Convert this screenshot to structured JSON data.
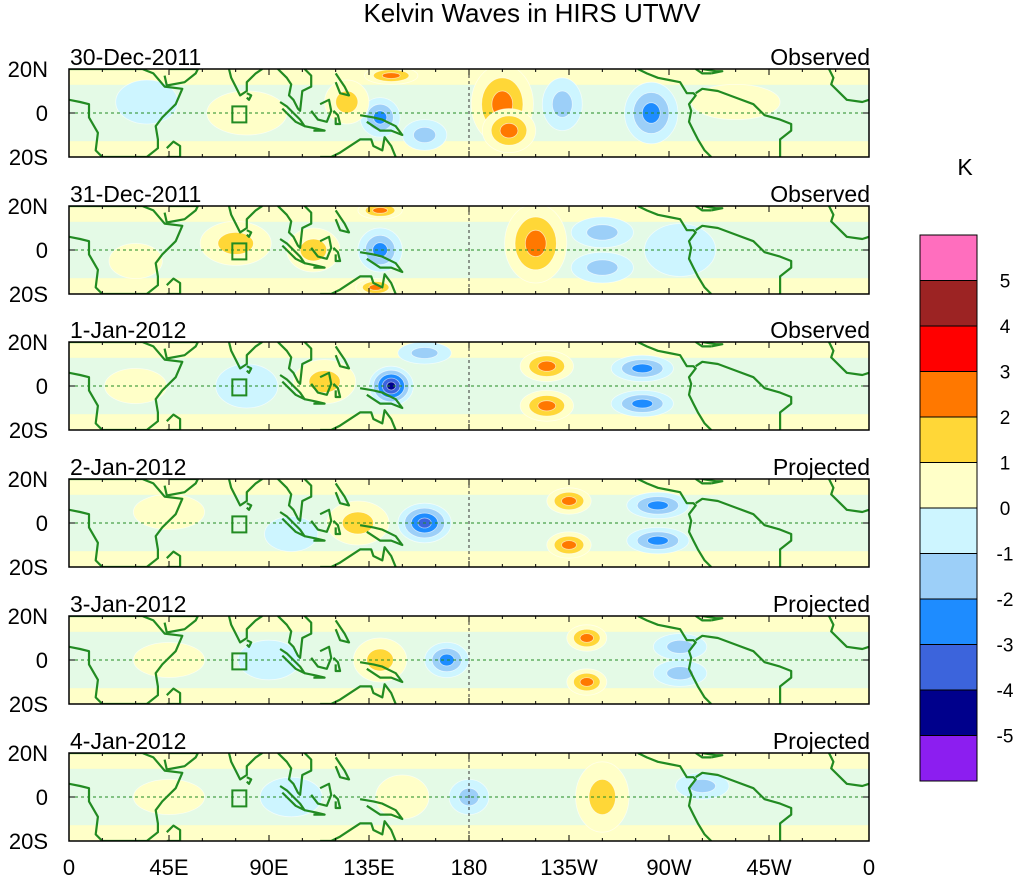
{
  "chart_data": {
    "type": "heatmap",
    "title": "Kelvin Waves in HIRS UTWV",
    "units": "K",
    "xlabel": "",
    "ylabel": "",
    "x_ticks": [
      "0",
      "45E",
      "90E",
      "135E",
      "180",
      "135W",
      "90W",
      "45W",
      "0"
    ],
    "x_tick_lons": [
      0,
      45,
      90,
      135,
      180,
      225,
      270,
      315,
      360
    ],
    "y_ticks": [
      "20N",
      "0",
      "20S"
    ],
    "y_tick_lats": [
      20,
      0,
      -20
    ],
    "lat_range": [
      -20,
      20
    ],
    "lon_range": [
      0,
      360
    ],
    "panels": [
      {
        "date": "30-Dec-2011",
        "kind": "Observed",
        "features": [
          {
            "lon": 195,
            "lat": 4,
            "value": 2.6,
            "rx": 14,
            "ry": 18
          },
          {
            "lon": 198,
            "lat": -8,
            "value": 2.2,
            "rx": 12,
            "ry": 10
          },
          {
            "lon": 140,
            "lat": -2,
            "value": -2.6,
            "rx": 9,
            "ry": 9
          },
          {
            "lon": 262,
            "lat": 0,
            "value": -2.4,
            "rx": 12,
            "ry": 14
          },
          {
            "lon": 222,
            "lat": 4,
            "value": -1.8,
            "rx": 9,
            "ry": 12
          },
          {
            "lon": 125,
            "lat": 5,
            "value": 1.8,
            "rx": 10,
            "ry": 10
          },
          {
            "lon": 80,
            "lat": 0,
            "value": 0.9,
            "rx": 18,
            "ry": 10
          },
          {
            "lon": 145,
            "lat": 17,
            "value": 2.2,
            "rx": 12,
            "ry": 4
          },
          {
            "lon": 160,
            "lat": -10,
            "value": -1.6,
            "rx": 10,
            "ry": 7
          },
          {
            "lon": 35,
            "lat": 5,
            "value": -0.8,
            "rx": 14,
            "ry": 10
          },
          {
            "lon": 300,
            "lat": 5,
            "value": 0.7,
            "rx": 20,
            "ry": 8
          }
        ]
      },
      {
        "date": "31-Dec-2011",
        "kind": "Observed",
        "features": [
          {
            "lon": 210,
            "lat": 3,
            "value": 2.6,
            "rx": 14,
            "ry": 18
          },
          {
            "lon": 140,
            "lat": 0,
            "value": -2.6,
            "rx": 10,
            "ry": 10
          },
          {
            "lon": 240,
            "lat": 8,
            "value": -1.6,
            "rx": 14,
            "ry": 7
          },
          {
            "lon": 240,
            "lat": -8,
            "value": -1.6,
            "rx": 14,
            "ry": 7
          },
          {
            "lon": 140,
            "lat": 18,
            "value": 2.8,
            "rx": 10,
            "ry": 4
          },
          {
            "lon": 138,
            "lat": -17,
            "value": 2.6,
            "rx": 9,
            "ry": 4
          },
          {
            "lon": 110,
            "lat": 0,
            "value": 1.0,
            "rx": 12,
            "ry": 10
          },
          {
            "lon": 75,
            "lat": 3,
            "value": 1.2,
            "rx": 16,
            "ry": 10
          },
          {
            "lon": 275,
            "lat": 0,
            "value": -0.9,
            "rx": 16,
            "ry": 12
          },
          {
            "lon": 30,
            "lat": -5,
            "value": 0.8,
            "rx": 12,
            "ry": 8
          }
        ]
      },
      {
        "date": "1-Jan-2012",
        "kind": "Observed",
        "features": [
          {
            "lon": 145,
            "lat": 0,
            "value": -4.3,
            "rx": 10,
            "ry": 9
          },
          {
            "lon": 215,
            "lat": 9,
            "value": 2.8,
            "rx": 12,
            "ry": 7
          },
          {
            "lon": 215,
            "lat": -9,
            "value": 2.8,
            "rx": 12,
            "ry": 7
          },
          {
            "lon": 258,
            "lat": 8,
            "value": -2.2,
            "rx": 14,
            "ry": 6
          },
          {
            "lon": 258,
            "lat": -8,
            "value": -2.2,
            "rx": 14,
            "ry": 6
          },
          {
            "lon": 115,
            "lat": 2,
            "value": 1.2,
            "rx": 14,
            "ry": 10
          },
          {
            "lon": 160,
            "lat": 15,
            "value": -1.2,
            "rx": 12,
            "ry": 5
          },
          {
            "lon": 80,
            "lat": 0,
            "value": -0.8,
            "rx": 14,
            "ry": 10
          },
          {
            "lon": 30,
            "lat": 0,
            "value": 0.8,
            "rx": 14,
            "ry": 8
          }
        ]
      },
      {
        "date": "2-Jan-2012",
        "kind": "Projected",
        "features": [
          {
            "lon": 160,
            "lat": 0,
            "value": -3.2,
            "rx": 12,
            "ry": 9
          },
          {
            "lon": 225,
            "lat": 10,
            "value": 2.7,
            "rx": 10,
            "ry": 6
          },
          {
            "lon": 225,
            "lat": -10,
            "value": 2.7,
            "rx": 10,
            "ry": 6
          },
          {
            "lon": 265,
            "lat": 8,
            "value": -2.0,
            "rx": 14,
            "ry": 6
          },
          {
            "lon": 265,
            "lat": -8,
            "value": -2.0,
            "rx": 14,
            "ry": 6
          },
          {
            "lon": 130,
            "lat": 0,
            "value": 1.3,
            "rx": 14,
            "ry": 10
          },
          {
            "lon": 100,
            "lat": -5,
            "value": -0.8,
            "rx": 12,
            "ry": 8
          },
          {
            "lon": 45,
            "lat": 5,
            "value": 0.6,
            "rx": 16,
            "ry": 8
          }
        ]
      },
      {
        "date": "3-Jan-2012",
        "kind": "Projected",
        "features": [
          {
            "lon": 170,
            "lat": 0,
            "value": -2.4,
            "rx": 10,
            "ry": 8
          },
          {
            "lon": 233,
            "lat": 10,
            "value": 2.3,
            "rx": 9,
            "ry": 6
          },
          {
            "lon": 233,
            "lat": -10,
            "value": 2.3,
            "rx": 9,
            "ry": 6
          },
          {
            "lon": 275,
            "lat": 6,
            "value": -1.7,
            "rx": 12,
            "ry": 6
          },
          {
            "lon": 275,
            "lat": -6,
            "value": -1.5,
            "rx": 12,
            "ry": 6
          },
          {
            "lon": 140,
            "lat": 0,
            "value": 1.2,
            "rx": 12,
            "ry": 10
          },
          {
            "lon": 90,
            "lat": 0,
            "value": -0.7,
            "rx": 14,
            "ry": 9
          },
          {
            "lon": 45,
            "lat": 0,
            "value": 0.5,
            "rx": 16,
            "ry": 8
          }
        ]
      },
      {
        "date": "4-Jan-2012",
        "kind": "Projected",
        "features": [
          {
            "lon": 180,
            "lat": 0,
            "value": -1.8,
            "rx": 9,
            "ry": 8
          },
          {
            "lon": 240,
            "lat": 0,
            "value": 1.5,
            "rx": 12,
            "ry": 16
          },
          {
            "lon": 285,
            "lat": 5,
            "value": -1.2,
            "rx": 12,
            "ry": 6
          },
          {
            "lon": 150,
            "lat": 0,
            "value": 0.8,
            "rx": 12,
            "ry": 10
          },
          {
            "lon": 100,
            "lat": 0,
            "value": -0.6,
            "rx": 14,
            "ry": 9
          },
          {
            "lon": 45,
            "lat": 0,
            "value": 0.4,
            "rx": 16,
            "ry": 8
          }
        ]
      }
    ],
    "colorbar": {
      "labels": [
        "5",
        "4",
        "3",
        "2",
        "1",
        "0",
        "-1",
        "-2",
        "-3",
        "-4",
        "-5"
      ],
      "bins": [
        {
          "min": 5,
          "color": "#ff6ebe"
        },
        {
          "min": 4,
          "max": 5,
          "color": "#9c2323"
        },
        {
          "min": 3,
          "max": 4,
          "color": "#ff0000"
        },
        {
          "min": 2,
          "max": 3,
          "color": "#ff7800"
        },
        {
          "min": 1,
          "max": 2,
          "color": "#ffd737"
        },
        {
          "min": 0,
          "max": 1,
          "color": "#ffffc8"
        },
        {
          "min": -1,
          "max": 0,
          "color": "#cdf5ff"
        },
        {
          "min": -2,
          "max": -1,
          "color": "#9ccff8"
        },
        {
          "min": -3,
          "max": -2,
          "color": "#1e8cff"
        },
        {
          "min": -4,
          "max": -3,
          "color": "#3c64dc"
        },
        {
          "min": -5,
          "max": -4,
          "color": "#00008c"
        },
        {
          "max": -5,
          "color": "#8c1ef0"
        }
      ]
    },
    "colors": {
      "coast": "#228b22",
      "axis": "#000000",
      "grid": "#228b22"
    }
  }
}
